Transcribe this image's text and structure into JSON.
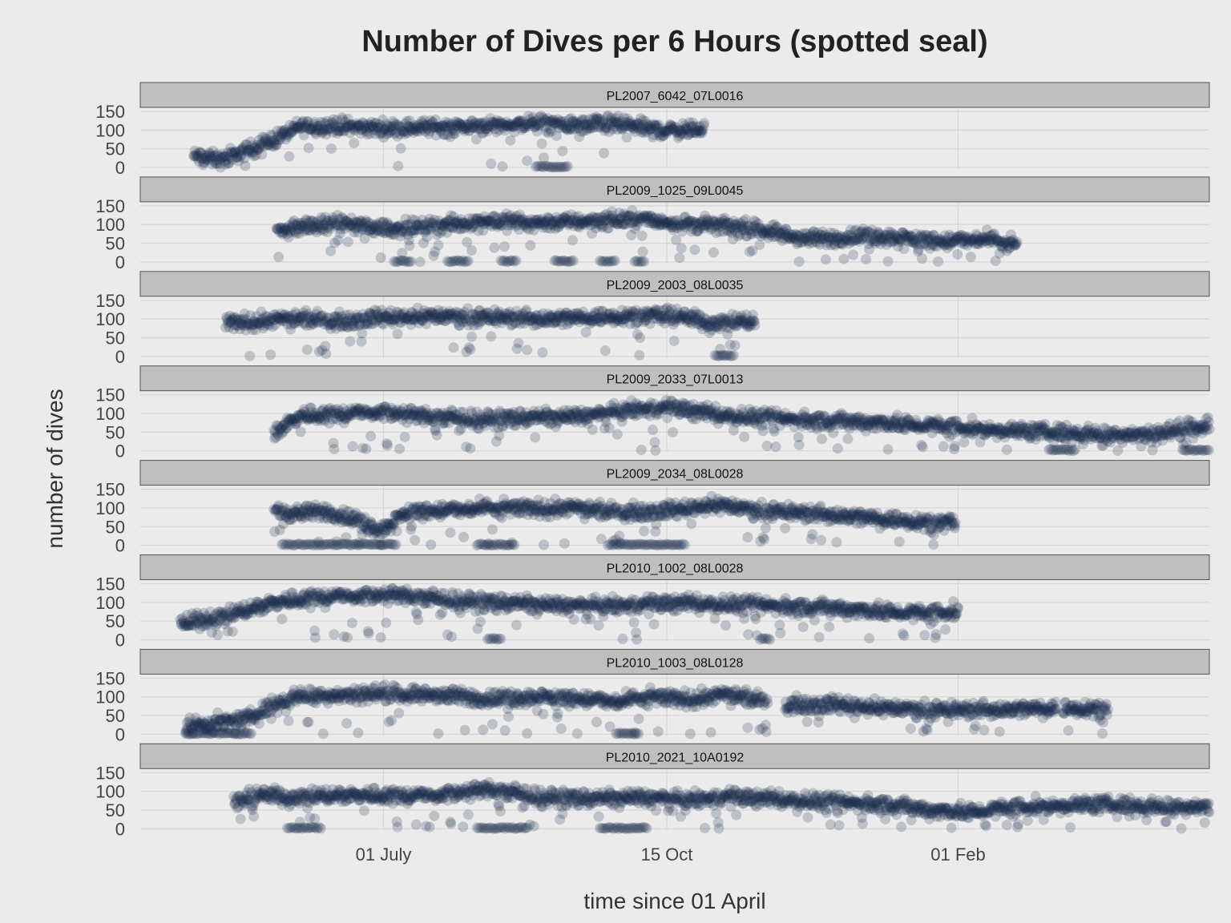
{
  "chart_data": {
    "type": "scatter",
    "title": "Number of Dives per 6 Hours (spotted seal)",
    "xlabel": "time since 01 April",
    "ylabel": "number of dives",
    "x_tick_labels": [
      "01 July",
      "15 Oct",
      "01 Feb"
    ],
    "x_tick_days": [
      91,
      197,
      306
    ],
    "xlim": [
      0,
      400
    ],
    "ylim": [
      0,
      150
    ],
    "y_ticks": [
      0,
      50,
      100,
      150
    ],
    "grid": true,
    "point_color": "#1b2f4e",
    "panel_bg": "#ebebeb",
    "strip_bg": "#bfbfbf",
    "gridline_color": "#d6d6d6",
    "series": [
      {
        "name": "PL2007_6042_07L0016",
        "start_day": 20,
        "end_day": 211,
        "profile": [
          [
            20,
            30
          ],
          [
            30,
            20
          ],
          [
            40,
            45
          ],
          [
            50,
            75
          ],
          [
            60,
            110
          ],
          [
            75,
            110
          ],
          [
            90,
            105
          ],
          [
            110,
            108
          ],
          [
            130,
            112
          ],
          [
            150,
            118
          ],
          [
            165,
            112
          ],
          [
            175,
            118
          ],
          [
            185,
            110
          ],
          [
            195,
            100
          ],
          [
            205,
            100
          ],
          [
            211,
            105
          ]
        ],
        "zero_clusters": [
          [
            148,
            160
          ]
        ]
      },
      {
        "name": "PL2009_1025_09L0045",
        "start_day": 51,
        "end_day": 328,
        "profile": [
          [
            51,
            80
          ],
          [
            60,
            95
          ],
          [
            75,
            100
          ],
          [
            85,
            95
          ],
          [
            95,
            90
          ],
          [
            110,
            95
          ],
          [
            130,
            110
          ],
          [
            150,
            105
          ],
          [
            170,
            110
          ],
          [
            185,
            115
          ],
          [
            200,
            105
          ],
          [
            220,
            95
          ],
          [
            235,
            85
          ],
          [
            245,
            65
          ],
          [
            255,
            60
          ],
          [
            270,
            70
          ],
          [
            285,
            65
          ],
          [
            300,
            55
          ],
          [
            315,
            60
          ],
          [
            328,
            45
          ]
        ],
        "zero_clusters": [
          [
            95,
            102
          ],
          [
            115,
            123
          ],
          [
            135,
            141
          ],
          [
            155,
            162
          ],
          [
            172,
            178
          ],
          [
            185,
            189
          ]
        ]
      },
      {
        "name": "PL2009_2003_08L0035",
        "start_day": 32,
        "end_day": 230,
        "profile": [
          [
            32,
            90
          ],
          [
            45,
            95
          ],
          [
            60,
            100
          ],
          [
            75,
            95
          ],
          [
            90,
            105
          ],
          [
            110,
            108
          ],
          [
            130,
            105
          ],
          [
            150,
            100
          ],
          [
            170,
            105
          ],
          [
            185,
            110
          ],
          [
            200,
            108
          ],
          [
            215,
            90
          ],
          [
            230,
            95
          ]
        ],
        "zero_clusters": [
          [
            215,
            222
          ]
        ]
      },
      {
        "name": "PL2009_2033_07L0013",
        "start_day": 50,
        "end_day": 400,
        "profile": [
          [
            50,
            50
          ],
          [
            60,
            95
          ],
          [
            75,
            100
          ],
          [
            90,
            105
          ],
          [
            110,
            90
          ],
          [
            130,
            85
          ],
          [
            150,
            90
          ],
          [
            170,
            95
          ],
          [
            185,
            110
          ],
          [
            200,
            115
          ],
          [
            220,
            95
          ],
          [
            240,
            85
          ],
          [
            260,
            80
          ],
          [
            280,
            75
          ],
          [
            300,
            65
          ],
          [
            320,
            55
          ],
          [
            340,
            50
          ],
          [
            360,
            45
          ],
          [
            380,
            45
          ],
          [
            395,
            65
          ],
          [
            400,
            70
          ]
        ],
        "zero_clusters": [
          [
            340,
            350
          ],
          [
            390,
            400
          ]
        ]
      },
      {
        "name": "PL2009_2034_08L0028",
        "start_day": 50,
        "end_day": 305,
        "profile": [
          [
            50,
            90
          ],
          [
            60,
            85
          ],
          [
            70,
            90
          ],
          [
            80,
            70
          ],
          [
            90,
            40
          ],
          [
            100,
            90
          ],
          [
            120,
            95
          ],
          [
            140,
            100
          ],
          [
            160,
            100
          ],
          [
            175,
            90
          ],
          [
            185,
            90
          ],
          [
            200,
            95
          ],
          [
            215,
            110
          ],
          [
            230,
            95
          ],
          [
            250,
            85
          ],
          [
            270,
            75
          ],
          [
            290,
            65
          ],
          [
            305,
            60
          ]
        ],
        "zero_clusters": [
          [
            53,
            96
          ],
          [
            126,
            140
          ],
          [
            175,
            204
          ]
        ]
      },
      {
        "name": "PL2010_1002_08L0028",
        "start_day": 15,
        "end_day": 306,
        "profile": [
          [
            15,
            40
          ],
          [
            25,
            55
          ],
          [
            35,
            70
          ],
          [
            50,
            100
          ],
          [
            65,
            115
          ],
          [
            80,
            118
          ],
          [
            95,
            120
          ],
          [
            110,
            110
          ],
          [
            130,
            100
          ],
          [
            150,
            95
          ],
          [
            165,
            90
          ],
          [
            178,
            90
          ],
          [
            190,
            95
          ],
          [
            205,
            100
          ],
          [
            220,
            95
          ],
          [
            240,
            90
          ],
          [
            260,
            85
          ],
          [
            280,
            75
          ],
          [
            295,
            70
          ],
          [
            306,
            75
          ]
        ],
        "zero_clusters": [
          [
            130,
            135
          ],
          [
            232,
            236
          ]
        ]
      },
      {
        "name": "PL2010_1003_08L0128",
        "start_day": 17,
        "end_day": 362,
        "profile": [
          [
            17,
            25
          ],
          [
            30,
            30
          ],
          [
            40,
            40
          ],
          [
            50,
            80
          ],
          [
            60,
            105
          ],
          [
            75,
            105
          ],
          [
            90,
            110
          ],
          [
            110,
            105
          ],
          [
            130,
            95
          ],
          [
            150,
            100
          ],
          [
            165,
            95
          ],
          [
            180,
            85
          ],
          [
            190,
            100
          ],
          [
            205,
            95
          ],
          [
            220,
            105
          ],
          [
            232,
            90
          ],
          [
            240,
            80
          ],
          [
            260,
            80
          ],
          [
            280,
            70
          ],
          [
            300,
            65
          ],
          [
            320,
            65
          ],
          [
            340,
            70
          ],
          [
            362,
            70
          ]
        ],
        "zero_clusters": [
          [
            17,
            42
          ],
          [
            178,
            187
          ]
        ],
        "gaps": [
          [
            235,
            241
          ],
          [
            343,
            345
          ]
        ]
      },
      {
        "name": "PL2010_2021_10A0192",
        "start_day": 35,
        "end_day": 400,
        "profile": [
          [
            35,
            70
          ],
          [
            45,
            90
          ],
          [
            60,
            85
          ],
          [
            75,
            90
          ],
          [
            90,
            90
          ],
          [
            110,
            90
          ],
          [
            130,
            105
          ],
          [
            150,
            85
          ],
          [
            170,
            80
          ],
          [
            185,
            85
          ],
          [
            195,
            80
          ],
          [
            205,
            75
          ],
          [
            220,
            85
          ],
          [
            240,
            80
          ],
          [
            260,
            70
          ],
          [
            280,
            65
          ],
          [
            295,
            50
          ],
          [
            310,
            45
          ],
          [
            325,
            55
          ],
          [
            340,
            60
          ],
          [
            360,
            65
          ],
          [
            380,
            60
          ],
          [
            400,
            60
          ]
        ],
        "zero_clusters": [
          [
            55,
            68
          ],
          [
            126,
            145
          ],
          [
            172,
            190
          ]
        ]
      }
    ]
  }
}
